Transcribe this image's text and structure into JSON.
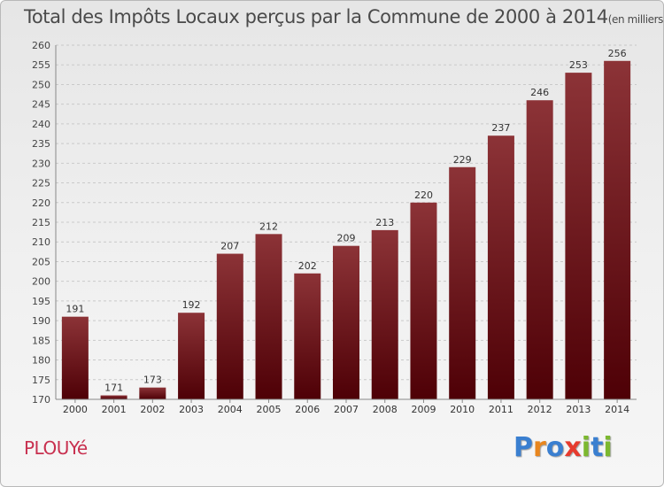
{
  "title": "Total des Impôts Locaux perçus par la Commune de 2000 à 2014",
  "unit": "(en milliers d'€)",
  "commune": "PLOUYé",
  "brand": {
    "text": "Proxiti",
    "letter_colors": [
      "#3a7fd0",
      "#e8861e",
      "#3a7fd0",
      "#e63b2e",
      "#7cb82f",
      "#3a7fd0",
      "#7cb82f"
    ]
  },
  "colors": {
    "bar_top": "#8c3337",
    "bar_bottom": "#4e0006",
    "commune": "#c8304f",
    "brand_blue": "#3a7fd0"
  },
  "chart_data": {
    "type": "bar",
    "categories": [
      "2000",
      "2001",
      "2002",
      "2003",
      "2004",
      "2005",
      "2006",
      "2007",
      "2008",
      "2009",
      "2010",
      "2011",
      "2012",
      "2013",
      "2014"
    ],
    "values": [
      191,
      171,
      173,
      192,
      207,
      212,
      202,
      209,
      213,
      220,
      229,
      237,
      246,
      253,
      256
    ],
    "ylim": [
      170,
      260
    ],
    "yticks": [
      170,
      175,
      180,
      185,
      190,
      195,
      200,
      205,
      210,
      215,
      220,
      225,
      230,
      235,
      240,
      245,
      250,
      255,
      260
    ],
    "grid": "horizontal dashed",
    "xlabel": "",
    "ylabel": ""
  }
}
